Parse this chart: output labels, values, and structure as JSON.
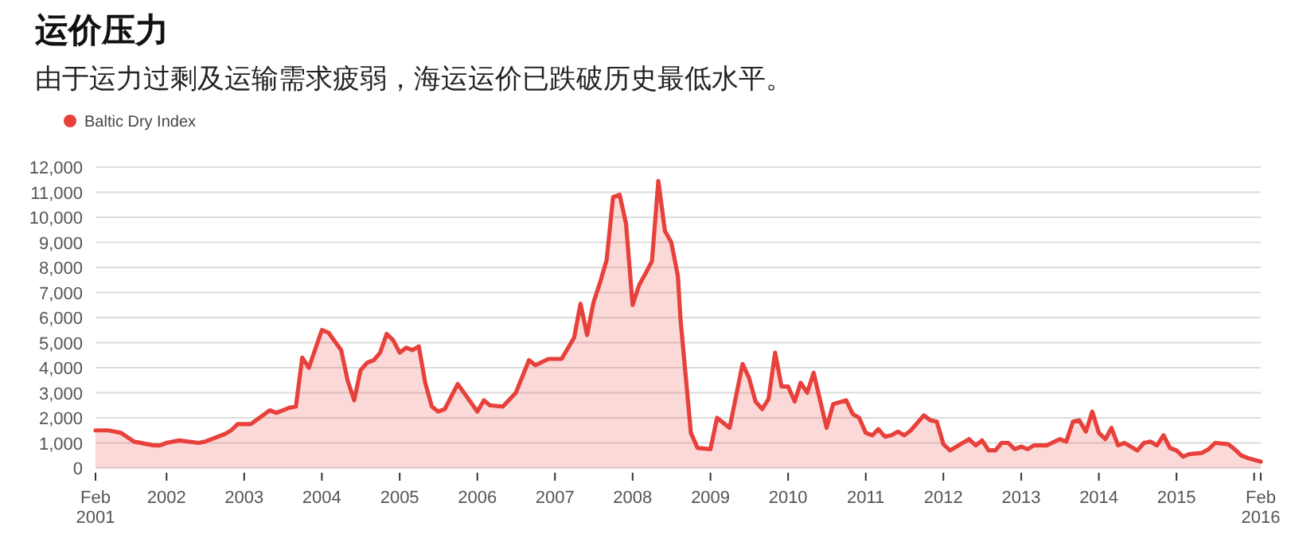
{
  "chart_data": {
    "type": "area",
    "title": "运价压力",
    "subtitle": "由于运力过剩及运输需求疲弱，海运运价已跌破历史最低水平。",
    "legend": "top left",
    "grid": "y",
    "xlim": [
      "2001-02",
      "2016-02"
    ],
    "xticks": [
      {
        "value": "2001-02",
        "label": "Feb\n2001"
      },
      {
        "value": "2002-01",
        "label": "2002"
      },
      {
        "value": "2003-01",
        "label": "2003"
      },
      {
        "value": "2004-01",
        "label": "2004"
      },
      {
        "value": "2005-01",
        "label": "2005"
      },
      {
        "value": "2006-01",
        "label": "2006"
      },
      {
        "value": "2007-01",
        "label": "2007"
      },
      {
        "value": "2008-01",
        "label": "2008"
      },
      {
        "value": "2009-01",
        "label": "2009"
      },
      {
        "value": "2010-01",
        "label": "2010"
      },
      {
        "value": "2011-01",
        "label": "2011"
      },
      {
        "value": "2012-01",
        "label": "2012"
      },
      {
        "value": "2013-01",
        "label": "2013"
      },
      {
        "value": "2014-01",
        "label": "2014"
      },
      {
        "value": "2015-01",
        "label": "2015"
      },
      {
        "value": "2016-01",
        "label": null
      },
      {
        "value": "2016-02",
        "label": "Feb\n2016"
      }
    ],
    "ylim": [
      0,
      12000
    ],
    "yticks": [
      {
        "value": 0,
        "label": "0"
      },
      {
        "value": 1000,
        "label": "1,000"
      },
      {
        "value": 2000,
        "label": "2,000"
      },
      {
        "value": 3000,
        "label": "3,000"
      },
      {
        "value": 4000,
        "label": "4,000"
      },
      {
        "value": 5000,
        "label": "5,000"
      },
      {
        "value": 6000,
        "label": "6,000"
      },
      {
        "value": 7000,
        "label": "7,000"
      },
      {
        "value": 8000,
        "label": "8,000"
      },
      {
        "value": 9000,
        "label": "9,000"
      },
      {
        "value": 10000,
        "label": "10,000"
      },
      {
        "value": 11000,
        "label": "11,000"
      },
      {
        "value": 12000,
        "label": "12,000"
      }
    ],
    "x": [
      "2001-02",
      "2001-04",
      "2001-05",
      "2001-06",
      "2001-08",
      "2001-11",
      "2001-12",
      "2002-01",
      "2002-03",
      "2002-06",
      "2002-07",
      "2002-10",
      "2002-11",
      "2002-12",
      "2003-02",
      "2003-05",
      "2003-06",
      "2003-08",
      "2003-09",
      "2003-10",
      "2003-11",
      "2004-01",
      "2004-02",
      "2004-04",
      "2004-05",
      "2004-06",
      "2004-07",
      "2004-08",
      "2004-09",
      "2004-10",
      "2004-11",
      "2004-12",
      "2005-01",
      "2005-02",
      "2005-03",
      "2005-04",
      "2005-05",
      "2005-06",
      "2005-07",
      "2005-08",
      "2005-10",
      "2006-01",
      "2006-02",
      "2006-03",
      "2006-05",
      "2006-07",
      "2006-09",
      "2006-10",
      "2006-12",
      "2007-02",
      "2007-04",
      "2007-05",
      "2007-06",
      "2007-07",
      "2007-08",
      "2007-09",
      "2007-10",
      "2007-11",
      "2007-12",
      "2008-01",
      "2008-02",
      "2008-03",
      "2008-04",
      "2008-05",
      "2008-06",
      "2008-07",
      "2008-08",
      "2008-08-13",
      "2008-10",
      "2008-11",
      "2009-01",
      "2009-02",
      "2009-04",
      "2009-06",
      "2009-07",
      "2009-08",
      "2009-09",
      "2009-10",
      "2009-11",
      "2009-12",
      "2010-01",
      "2010-02",
      "2010-03",
      "2010-04",
      "2010-05",
      "2010-07",
      "2010-08",
      "2010-10",
      "2010-11",
      "2010-12",
      "2011-01",
      "2011-02",
      "2011-03",
      "2011-04",
      "2011-05",
      "2011-06",
      "2011-07",
      "2011-08",
      "2011-10",
      "2011-11",
      "2011-12",
      "2012-01",
      "2012-02",
      "2012-04",
      "2012-05",
      "2012-06",
      "2012-07",
      "2012-08",
      "2012-09",
      "2012-10",
      "2012-11",
      "2012-12",
      "2013-01",
      "2013-02",
      "2013-03",
      "2013-05",
      "2013-07",
      "2013-08",
      "2013-09",
      "2013-10",
      "2013-11",
      "2013-12",
      "2014-01",
      "2014-02",
      "2014-03",
      "2014-04",
      "2014-05",
      "2014-07",
      "2014-08",
      "2014-09",
      "2014-10",
      "2014-11",
      "2014-12",
      "2015-01",
      "2015-02",
      "2015-03",
      "2015-05",
      "2015-06",
      "2015-07",
      "2015-09",
      "2015-10",
      "2015-11",
      "2015-12",
      "2016-02"
    ],
    "series": [
      {
        "name": "Baltic Dry Index",
        "color": "#e8403a",
        "values": [
          1500,
          1500,
          1450,
          1400,
          1050,
          900,
          900,
          1000,
          1100,
          1000,
          1050,
          1350,
          1500,
          1750,
          1750,
          2300,
          2200,
          2400,
          2450,
          4400,
          4000,
          5500,
          5400,
          4700,
          3500,
          2700,
          3900,
          4200,
          4300,
          4600,
          5350,
          5100,
          4600,
          4800,
          4700,
          4850,
          3400,
          2450,
          2250,
          2350,
          3350,
          2250,
          2700,
          2500,
          2450,
          3000,
          4300,
          4100,
          4350,
          4350,
          5200,
          6550,
          5300,
          6600,
          7400,
          8300,
          10800,
          10900,
          9750,
          6500,
          7300,
          7750,
          8250,
          11450,
          9450,
          9000,
          7650,
          5950,
          1400,
          800,
          750,
          2000,
          1600,
          4150,
          3600,
          2650,
          2350,
          2750,
          4600,
          3250,
          3250,
          2650,
          3400,
          3000,
          3800,
          1600,
          2550,
          2700,
          2150,
          2000,
          1400,
          1300,
          1550,
          1250,
          1300,
          1450,
          1300,
          1500,
          2100,
          1900,
          1850,
          950,
          700,
          1000,
          1150,
          900,
          1100,
          700,
          700,
          1000,
          1000,
          750,
          850,
          750,
          900,
          900,
          1150,
          1050,
          1850,
          1900,
          1450,
          2250,
          1400,
          1150,
          1600,
          900,
          1000,
          700,
          1000,
          1050,
          900,
          1300,
          800,
          700,
          450,
          550,
          600,
          750,
          1000,
          950,
          750,
          500,
          400,
          250
        ]
      }
    ]
  }
}
